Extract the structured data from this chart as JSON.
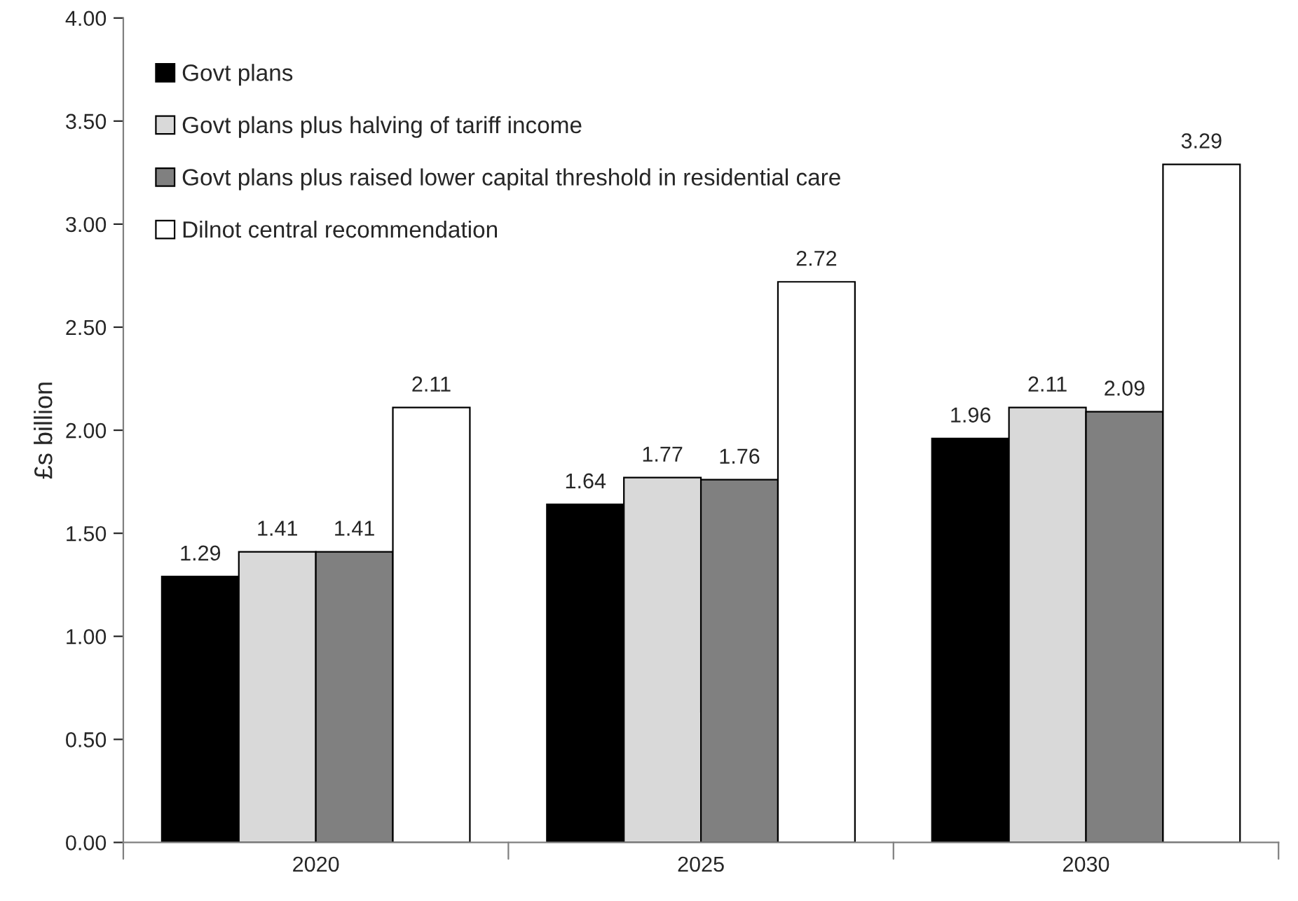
{
  "chart_data": {
    "type": "bar",
    "ylabel": "£s billion",
    "categories": [
      "2020",
      "2025",
      "2030"
    ],
    "series": [
      {
        "name": "Govt plans",
        "color": "#000000",
        "values": [
          1.29,
          1.64,
          1.96
        ]
      },
      {
        "name": "Govt plans plus halving of tariff income",
        "color": "#d9d9d9",
        "values": [
          1.41,
          1.77,
          2.11
        ]
      },
      {
        "name": "Govt plans plus raised lower capital threshold in residential care",
        "color": "#808080",
        "values": [
          1.41,
          1.76,
          2.09
        ]
      },
      {
        "name": "Dilnot central recommendation",
        "color": "#ffffff",
        "values": [
          2.11,
          2.72,
          3.29
        ]
      }
    ],
    "ylim": [
      0,
      4
    ],
    "yticks": [
      {
        "value": 0,
        "label": "0.00"
      },
      {
        "value": 0.5,
        "label": "0.50"
      },
      {
        "value": 1,
        "label": "1.00"
      },
      {
        "value": 1.5,
        "label": "1.50"
      },
      {
        "value": 2,
        "label": "2.00"
      },
      {
        "value": 2.5,
        "label": "2.50"
      },
      {
        "value": 3,
        "label": "3.00"
      },
      {
        "value": 3.5,
        "label": "3.50"
      },
      {
        "value": 4,
        "label": "4.00"
      }
    ],
    "data_labels": true,
    "legend": "top left",
    "grid": false
  }
}
